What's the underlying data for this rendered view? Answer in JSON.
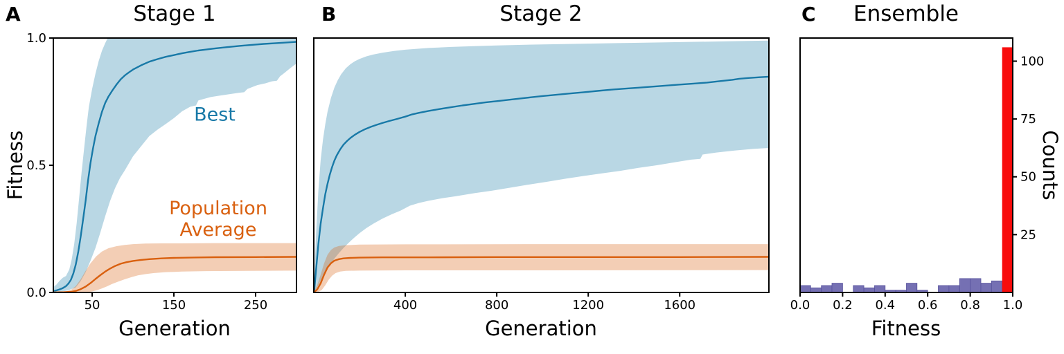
{
  "panel_a": {
    "letter": "A",
    "title": "Stage 1",
    "xlabel": "Generation",
    "ylabel": "Fitness",
    "annotation_best": "Best",
    "annotation_pop_line1": "Population",
    "annotation_pop_line2": "Average"
  },
  "panel_b": {
    "letter": "B",
    "title": "Stage 2",
    "xlabel": "Generation"
  },
  "panel_c": {
    "letter": "C",
    "title": "Ensemble",
    "xlabel": "Fitness",
    "ylabel_right": "Counts"
  },
  "colors": {
    "best_line": "#1879a7",
    "best_band_alpha": 0.3,
    "pop_line": "#d9600f",
    "pop_band_alpha": 0.31,
    "hist_bar": "#7570b3",
    "hist_bar_edge": "#56519c",
    "hist_top_bar": "#f80c0c",
    "axis": "#000000",
    "background": "#ffffff"
  },
  "chart_data": [
    {
      "id": "stage1",
      "type": "line",
      "title": "Stage 1",
      "xlabel": "Generation",
      "ylabel": "Fitness",
      "xlim": [
        2.5,
        300
      ],
      "ylim": [
        0,
        1
      ],
      "xticks": [
        50,
        150,
        250
      ],
      "xtick_labels": [
        "50",
        "150",
        "250"
      ],
      "yticks": [
        0.0,
        0.5,
        1.0
      ],
      "ytick_labels": [
        "0.0",
        "0.5",
        "1.0"
      ],
      "grid": false,
      "legend_position": "inline-annotations",
      "series": [
        {
          "name": "Best",
          "color": "#1879a7",
          "x": [
            2,
            6,
            10,
            14,
            18,
            21,
            24,
            27,
            30,
            33,
            36,
            39,
            42,
            45,
            48,
            51,
            54,
            58,
            62,
            66,
            70,
            75,
            80,
            85,
            90,
            95,
            100,
            110,
            120,
            130,
            140,
            150,
            160,
            170,
            180,
            190,
            200,
            215,
            230,
            245,
            260,
            275,
            290,
            300
          ],
          "y": [
            0.005,
            0.008,
            0.012,
            0.017,
            0.025,
            0.035,
            0.05,
            0.075,
            0.11,
            0.16,
            0.22,
            0.29,
            0.36,
            0.44,
            0.51,
            0.565,
            0.615,
            0.665,
            0.71,
            0.745,
            0.77,
            0.795,
            0.818,
            0.838,
            0.853,
            0.865,
            0.876,
            0.893,
            0.907,
            0.917,
            0.926,
            0.933,
            0.94,
            0.946,
            0.951,
            0.955,
            0.959,
            0.964,
            0.969,
            0.973,
            0.977,
            0.98,
            0.983,
            0.985
          ],
          "band": {
            "upper_x": [
              2,
              6,
              10,
              14,
              18,
              22,
              25,
              28,
              31,
              34,
              37,
              40,
              43,
              46,
              50,
              54,
              58,
              62,
              66,
              69,
              300
            ],
            "upper_y": [
              0.02,
              0.03,
              0.045,
              0.058,
              0.065,
              0.09,
              0.13,
              0.19,
              0.27,
              0.37,
              0.47,
              0.56,
              0.65,
              0.73,
              0.8,
              0.86,
              0.91,
              0.95,
              0.98,
              1.0,
              1.0
            ],
            "lower_x": [
              2,
              10,
              20,
              30,
              36,
              42,
              48,
              54,
              60,
              66,
              72,
              78,
              84,
              90,
              100,
              110,
              120,
              130,
              140,
              150,
              160,
              170,
              177,
              180,
              195,
              205,
              215,
              230,
              236,
              240,
              252,
              262,
              270,
              276,
              280,
              285,
              291,
              295,
              300
            ],
            "lower_y": [
              0.0,
              0.002,
              0.008,
              0.02,
              0.045,
              0.08,
              0.125,
              0.175,
              0.235,
              0.3,
              0.36,
              0.41,
              0.45,
              0.48,
              0.535,
              0.575,
              0.615,
              0.64,
              0.662,
              0.685,
              0.712,
              0.73,
              0.735,
              0.755,
              0.768,
              0.773,
              0.778,
              0.785,
              0.787,
              0.8,
              0.815,
              0.822,
              0.83,
              0.832,
              0.85,
              0.862,
              0.878,
              0.888,
              0.9
            ]
          }
        },
        {
          "name": "Population Average",
          "color": "#d9600f",
          "x": [
            2,
            15,
            25,
            31,
            36,
            42,
            48,
            54,
            60,
            66,
            72,
            78,
            85,
            92,
            100,
            110,
            120,
            135,
            150,
            175,
            200,
            250,
            300
          ],
          "y": [
            0.0,
            0.001,
            0.003,
            0.007,
            0.013,
            0.023,
            0.037,
            0.053,
            0.068,
            0.082,
            0.094,
            0.104,
            0.113,
            0.119,
            0.124,
            0.128,
            0.131,
            0.134,
            0.136,
            0.1375,
            0.1385,
            0.139,
            0.14
          ],
          "band": {
            "upper_x": [
              2,
              18,
              24,
              30,
              36,
              42,
              48,
              55,
              62,
              70,
              80,
              90,
              100,
              115,
              135,
              160,
              200,
              300
            ],
            "upper_y": [
              0.002,
              0.004,
              0.01,
              0.025,
              0.052,
              0.085,
              0.115,
              0.142,
              0.161,
              0.174,
              0.182,
              0.187,
              0.19,
              0.192,
              0.193,
              0.193,
              0.194,
              0.194
            ],
            "lower_x": [
              2,
              38,
              44,
              50,
              56,
              62,
              68,
              74,
              82,
              90,
              98,
              106,
              115,
              125,
              140,
              160,
              190,
              240,
              300
            ],
            "lower_y": [
              0.0,
              0.0,
              0.001,
              0.004,
              0.009,
              0.016,
              0.024,
              0.033,
              0.043,
              0.052,
              0.06,
              0.067,
              0.072,
              0.076,
              0.08,
              0.082,
              0.084,
              0.085,
              0.086
            ]
          }
        }
      ]
    },
    {
      "id": "stage2",
      "type": "line",
      "title": "Stage 2",
      "xlabel": "Generation",
      "ylabel": "",
      "xlim": [
        0,
        1990
      ],
      "ylim": [
        0,
        1
      ],
      "xticks": [
        400,
        800,
        1200,
        1600
      ],
      "xtick_labels": [
        "400",
        "800",
        "1200",
        "1600"
      ],
      "yticks": [],
      "ytick_labels": [],
      "grid": false,
      "series": [
        {
          "name": "Best",
          "color": "#1879a7",
          "x": [
            2,
            10,
            20,
            30,
            40,
            50,
            60,
            70,
            80,
            90,
            100,
            115,
            130,
            145,
            160,
            180,
            200,
            225,
            250,
            275,
            300,
            330,
            360,
            400,
            430,
            460,
            500,
            550,
            600,
            650,
            700,
            750,
            800,
            850,
            900,
            950,
            1000,
            1060,
            1120,
            1180,
            1240,
            1300,
            1360,
            1420,
            1480,
            1540,
            1600,
            1660,
            1720,
            1780,
            1830,
            1860,
            1900,
            1950,
            1990
          ],
          "y": [
            0.01,
            0.09,
            0.19,
            0.27,
            0.33,
            0.385,
            0.427,
            0.463,
            0.493,
            0.518,
            0.538,
            0.562,
            0.581,
            0.595,
            0.607,
            0.62,
            0.631,
            0.642,
            0.651,
            0.659,
            0.666,
            0.674,
            0.681,
            0.691,
            0.7,
            0.706,
            0.713,
            0.721,
            0.728,
            0.735,
            0.741,
            0.747,
            0.752,
            0.757,
            0.762,
            0.767,
            0.772,
            0.777,
            0.782,
            0.787,
            0.792,
            0.797,
            0.801,
            0.805,
            0.809,
            0.813,
            0.817,
            0.821,
            0.825,
            0.831,
            0.836,
            0.84,
            0.843,
            0.846,
            0.848
          ],
          "band": {
            "upper_x": [
              2,
              10,
              20,
              30,
              40,
              50,
              60,
              75,
              90,
              105,
              120,
              140,
              160,
              180,
              200,
              230,
              260,
              300,
              350,
              400,
              500,
              600,
              700,
              800,
              1000,
              1200,
              1400,
              1600,
              1800,
              1990
            ],
            "upper_y": [
              0.05,
              0.23,
              0.4,
              0.52,
              0.6,
              0.66,
              0.71,
              0.765,
              0.805,
              0.835,
              0.858,
              0.881,
              0.897,
              0.909,
              0.918,
              0.928,
              0.935,
              0.942,
              0.949,
              0.954,
              0.961,
              0.965,
              0.968,
              0.971,
              0.975,
              0.978,
              0.981,
              0.984,
              0.987,
              0.99
            ],
            "lower_x": [
              2,
              15,
              30,
              50,
              70,
              90,
              110,
              130,
              150,
              175,
              200,
              230,
              260,
              300,
              340,
              380,
              420,
              460,
              500,
              560,
              620,
              700,
              780,
              860,
              940,
              1020,
              1100,
              1180,
              1260,
              1340,
              1420,
              1500,
              1580,
              1650,
              1690,
              1700,
              1760,
              1840,
              1920,
              1990
            ],
            "lower_y": [
              0.0,
              0.02,
              0.045,
              0.08,
              0.108,
              0.133,
              0.155,
              0.175,
              0.193,
              0.214,
              0.233,
              0.253,
              0.27,
              0.29,
              0.307,
              0.322,
              0.341,
              0.352,
              0.36,
              0.37,
              0.378,
              0.39,
              0.4,
              0.412,
              0.424,
              0.435,
              0.447,
              0.458,
              0.468,
              0.478,
              0.49,
              0.5,
              0.512,
              0.522,
              0.525,
              0.542,
              0.55,
              0.558,
              0.564,
              0.568
            ]
          }
        },
        {
          "name": "Population Average",
          "color": "#d9600f",
          "x": [
            2,
            15,
            30,
            45,
            60,
            75,
            90,
            110,
            130,
            160,
            200,
            300,
            500,
            800,
            1200,
            1600,
            1990
          ],
          "y": [
            0.002,
            0.012,
            0.036,
            0.07,
            0.098,
            0.115,
            0.125,
            0.131,
            0.134,
            0.136,
            0.137,
            0.138,
            0.138,
            0.139,
            0.139,
            0.139,
            0.14
          ],
          "band": {
            "upper_x": [
              2,
              15,
              30,
              45,
              60,
              75,
              90,
              110,
              140,
              200,
              400,
              1000,
              1990
            ],
            "upper_y": [
              0.006,
              0.03,
              0.07,
              0.115,
              0.148,
              0.167,
              0.177,
              0.183,
              0.186,
              0.188,
              0.189,
              0.19,
              0.19
            ],
            "lower_x": [
              2,
              20,
              35,
              50,
              65,
              80,
              95,
              115,
              140,
              200,
              400,
              1000,
              1990
            ],
            "lower_y": [
              0.0,
              0.002,
              0.01,
              0.028,
              0.05,
              0.066,
              0.076,
              0.082,
              0.085,
              0.086,
              0.087,
              0.087,
              0.088
            ]
          }
        }
      ]
    },
    {
      "id": "ensemble",
      "type": "bar",
      "title": "Ensemble",
      "xlabel": "Fitness",
      "ylabel_right": "Counts",
      "xlim": [
        0,
        1
      ],
      "ylim": [
        0,
        110
      ],
      "xticks": [
        0.0,
        0.2,
        0.4,
        0.6,
        0.8,
        1.0
      ],
      "xtick_labels": [
        "0.0",
        "0.2",
        "0.4",
        "0.6",
        "0.8",
        "1.0"
      ],
      "yticks_right": [
        25,
        50,
        75,
        100
      ],
      "ytick_right_labels": [
        "25",
        "50",
        "75",
        "100"
      ],
      "grid": false,
      "bin_edges": [
        0.0,
        0.05,
        0.1,
        0.15,
        0.2,
        0.25,
        0.3,
        0.35,
        0.4,
        0.45,
        0.5,
        0.55,
        0.6,
        0.65,
        0.7,
        0.75,
        0.8,
        0.85,
        0.9,
        0.95,
        1.0
      ],
      "counts": [
        3,
        2,
        3,
        4,
        0,
        3,
        2,
        3,
        1,
        1,
        4,
        1,
        0,
        3,
        3,
        6,
        6,
        4,
        5,
        106
      ],
      "highlight_bin_index": 19,
      "bar_color": "#7570b3",
      "highlight_color": "#f80c0c"
    }
  ]
}
